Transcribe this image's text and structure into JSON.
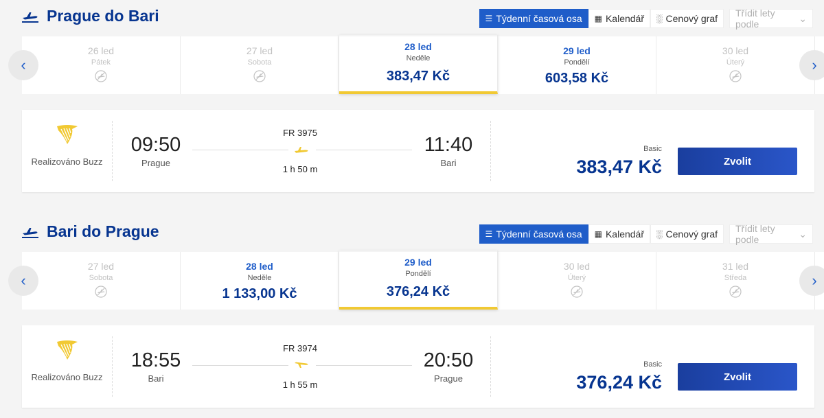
{
  "view_tabs": {
    "weekly": "Týdenní časová osa",
    "calendar": "Kalendář",
    "price_chart": "Cenový graf",
    "sort": "Třídit lety podle"
  },
  "outbound": {
    "title": "Prague do Bari",
    "days": [
      {
        "date": "26 led",
        "weekday": "Pátek",
        "price": "",
        "state": "dim"
      },
      {
        "date": "27 led",
        "weekday": "Sobota",
        "price": "",
        "state": "dim"
      },
      {
        "date": "28 led",
        "weekday": "Neděle",
        "price": "383,47 Kč",
        "state": "sel"
      },
      {
        "date": "29 led",
        "weekday": "Pondělí",
        "price": "603,58 Kč",
        "state": "avail"
      },
      {
        "date": "30 led",
        "weekday": "Úterý",
        "price": "",
        "state": "dim"
      }
    ],
    "flight": {
      "carrier": "Realizováno Buzz",
      "depart_time": "09:50",
      "depart_city": "Prague",
      "flight_no": "FR 3975",
      "duration": "1 h 50 m",
      "arrive_time": "11:40",
      "arrive_city": "Bari",
      "fare_label": "Basic",
      "price": "383,47 Kč",
      "select": "Zvolit"
    }
  },
  "inbound": {
    "title": "Bari do Prague",
    "days": [
      {
        "date": "27 led",
        "weekday": "Sobota",
        "price": "",
        "state": "dim"
      },
      {
        "date": "28 led",
        "weekday": "Neděle",
        "price": "1 133,00 Kč",
        "state": "avail"
      },
      {
        "date": "29 led",
        "weekday": "Pondělí",
        "price": "376,24 Kč",
        "state": "sel"
      },
      {
        "date": "30 led",
        "weekday": "Úterý",
        "price": "",
        "state": "dim"
      },
      {
        "date": "31 led",
        "weekday": "Středa",
        "price": "",
        "state": "dim"
      }
    ],
    "flight": {
      "carrier": "Realizováno Buzz",
      "depart_time": "18:55",
      "depart_city": "Bari",
      "flight_no": "FR 3974",
      "duration": "1 h 55 m",
      "arrive_time": "20:50",
      "arrive_city": "Prague",
      "fare_label": "Basic",
      "price": "376,24 Kč",
      "select": "Zvolit"
    }
  },
  "colors": {
    "brand": "#073590",
    "accent": "#1f5dc9",
    "highlight": "#f1c933"
  },
  "icons": {
    "departure": "plane-takeoff-icon",
    "carrier": "ryanair-harp-icon",
    "no_flight": "no-flight-icon",
    "prev": "chevron-left-icon",
    "next": "chevron-right-icon"
  }
}
